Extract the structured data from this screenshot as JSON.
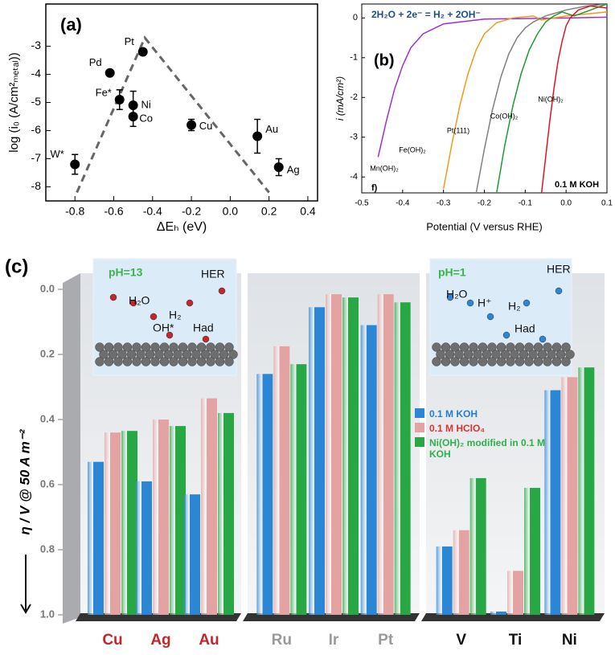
{
  "chart_data": [
    {
      "type": "scatter",
      "panel_label": "(a)",
      "x_label": "ΔEₕ (eV)",
      "y_label": "log (i₀ (A/cm²ₘₑₜₐₗ))",
      "categories": [
        "W*",
        "Pd",
        "Pt",
        "Fe*",
        "Ni",
        "Co",
        "Cu",
        "Au",
        "Ag"
      ],
      "x": [
        -0.8,
        -0.62,
        -0.45,
        -0.57,
        -0.5,
        -0.5,
        -0.2,
        0.14,
        0.25
      ],
      "values": [
        -7.2,
        -3.95,
        -3.2,
        -4.9,
        -5.1,
        -5.5,
        -5.8,
        -6.2,
        -7.3
      ],
      "errors": [
        0.35,
        null,
        null,
        0.35,
        0.5,
        0.35,
        0.2,
        0.6,
        0.3
      ],
      "color": "#000000",
      "guide_lines": {
        "x": [
          -0.79,
          -0.44,
          0.2
        ],
        "y": [
          -8.2,
          -2.7,
          -8.2
        ],
        "color": "#666666"
      },
      "xlim": [
        -0.95,
        0.45
      ],
      "ylim": [
        -8.5,
        -1.5
      ],
      "xticks": [
        -0.8,
        -0.6,
        -0.4,
        -0.2,
        {
          "value": 0,
          "label": "0.0"
        },
        0.2,
        0.4
      ],
      "yticks": [
        -8,
        -7,
        -6,
        -5,
        -4,
        -3
      ]
    },
    {
      "type": "line",
      "panel_label": "(b)",
      "equation": "2H₂O + 2e⁻ = H₂ + 2OH⁻",
      "corner_label": "f)",
      "condition": "0.1 M KOH",
      "x_label": "Potential (V versus RHE)",
      "y_label": "i (mA/cm²)",
      "series": [
        {
          "name": "Mn(OH)₂",
          "color": "#9b30d9",
          "x": [
            -0.46,
            -0.44,
            -0.42,
            -0.4,
            -0.38,
            -0.35,
            -0.3,
            -0.2,
            0.0,
            0.1
          ],
          "values": [
            -3.5,
            -2.6,
            -1.8,
            -1.2,
            -0.75,
            -0.4,
            -0.15,
            -0.03,
            0,
            0.02
          ]
        },
        {
          "name": "Fe(OH)₂",
          "color": "#f29a1a",
          "x": [
            -0.3,
            -0.28,
            -0.26,
            -0.24,
            -0.22,
            -0.2,
            -0.17,
            -0.13,
            -0.1,
            -0.08,
            -0.06,
            0.0,
            0.1
          ],
          "values": [
            -4.3,
            -3.2,
            -2.2,
            -1.4,
            -0.8,
            -0.4,
            -0.12,
            0,
            0.03,
            0.05,
            -0.05,
            0.05,
            0.15
          ]
        },
        {
          "name": "Pt(111)",
          "color": "#808080",
          "x": [
            -0.22,
            -0.2,
            -0.18,
            -0.16,
            -0.14,
            -0.12,
            -0.1,
            -0.08,
            -0.05,
            0.0,
            0.05,
            0.1
          ],
          "values": [
            -4.4,
            -3.3,
            -2.3,
            -1.5,
            -0.9,
            -0.5,
            -0.25,
            -0.1,
            0.05,
            0.2,
            0.3,
            0.35
          ]
        },
        {
          "name": "Co(OH)₂",
          "color": "#1e9a2e",
          "x": [
            -0.17,
            -0.15,
            -0.13,
            -0.11,
            -0.09,
            -0.07,
            -0.05,
            -0.03,
            -0.01,
            0.02,
            0.06,
            0.1
          ],
          "values": [
            -4.4,
            -3.2,
            -2.2,
            -1.4,
            -0.8,
            -0.4,
            -0.1,
            0.05,
            0.15,
            0.05,
            0.2,
            0.35
          ]
        },
        {
          "name": "Ni(OH)₂",
          "color": "#e0141e",
          "x": [
            -0.06,
            -0.05,
            -0.04,
            -0.03,
            -0.02,
            -0.01,
            0.0,
            0.01,
            0.03,
            0.06,
            0.1
          ],
          "values": [
            -4.4,
            -3.5,
            -2.6,
            -1.8,
            -1.1,
            -0.6,
            -0.2,
            0.0,
            0.2,
            0.3,
            0.25
          ]
        }
      ],
      "xlim": [
        -0.5,
        0.1
      ],
      "ylim": [
        -4.4,
        0.35
      ],
      "xticks": [
        -0.5,
        -0.4,
        -0.3,
        -0.2,
        -0.1,
        {
          "value": 0,
          "label": "0.0"
        },
        0.1
      ],
      "yticks": [
        0,
        -1,
        -2,
        -3,
        -4
      ]
    },
    {
      "type": "bar",
      "panel_label": "(c)",
      "y_label": "η / V @ 50 A m⁻²",
      "y_inverted": true,
      "categories": [
        "Cu",
        "Ag",
        "Au",
        "Ru",
        "Ir",
        "Pt",
        "V",
        "Ti",
        "Ni"
      ],
      "category_colors": [
        "#c0282d",
        "#c0282d",
        "#c0282d",
        "#9a9a9a",
        "#9a9a9a",
        "#9a9a9a",
        "#111111",
        "#111111",
        "#111111"
      ],
      "series": [
        {
          "name": "0.1 M KOH",
          "color": "#2b86d6",
          "label_color": "#1f7fd4",
          "values": [
            0.53,
            0.59,
            0.63,
            0.26,
            0.055,
            0.11,
            0.79,
            0.99,
            0.31
          ]
        },
        {
          "name": "0.1 M HClO₄",
          "color": "#e3a3a3",
          "label_color": "#e03030",
          "values": [
            0.44,
            0.4,
            0.335,
            0.175,
            0.015,
            0.015,
            0.74,
            0.865,
            0.27
          ]
        },
        {
          "name": "Ni(OH)₂ modified in 0.1 M KOH",
          "color": "#27a844",
          "label_color": "#2bb34a",
          "values": [
            0.435,
            0.42,
            0.38,
            0.23,
            0.025,
            0.04,
            0.58,
            0.61,
            0.24
          ]
        }
      ],
      "ylim": [
        0,
        1
      ],
      "yticks": [
        {
          "value": 0,
          "label": "0.0"
        },
        0.2,
        0.4,
        0.6,
        0.8,
        {
          "value": 1,
          "label": "1.0"
        }
      ],
      "insets": [
        {
          "labels": [
            "pH=13",
            "HER",
            "H₂O",
            "H₂",
            "OH*",
            "Had"
          ]
        },
        {
          "labels": [
            "pH=1",
            "HER",
            "H₂O",
            "H⁺",
            "H₂",
            "Had"
          ]
        }
      ]
    }
  ]
}
